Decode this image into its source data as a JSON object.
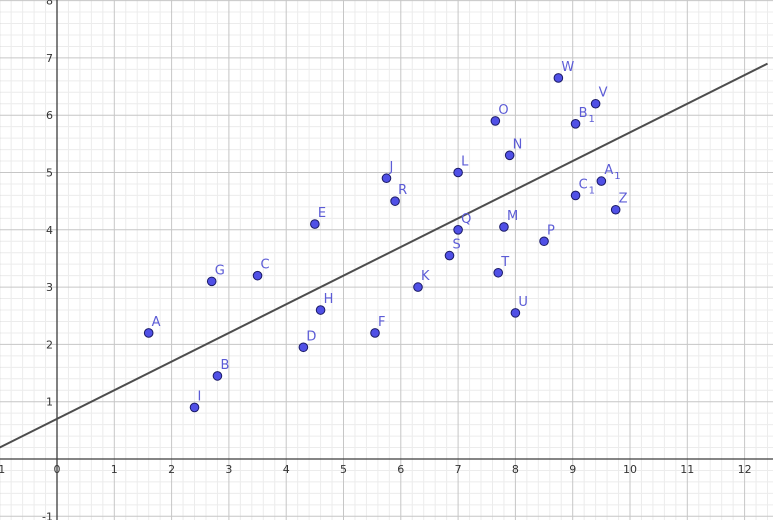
{
  "chart_data": {
    "type": "scatter",
    "xlim": [
      -1,
      12.4
    ],
    "ylim": [
      -1,
      8
    ],
    "grid": true,
    "grid_minor_step": 0.2,
    "x_ticks": [
      "-1",
      "0",
      "1",
      "2",
      "3",
      "4",
      "5",
      "6",
      "7",
      "8",
      "9",
      "10",
      "11",
      "12"
    ],
    "y_ticks": [
      "-1",
      "1",
      "2",
      "3",
      "4",
      "5",
      "6",
      "7",
      "8"
    ],
    "points": [
      {
        "label": "A",
        "sub": "",
        "x": 1.6,
        "y": 2.2
      },
      {
        "label": "B",
        "sub": "",
        "x": 2.8,
        "y": 1.45
      },
      {
        "label": "C",
        "sub": "",
        "x": 3.5,
        "y": 3.2
      },
      {
        "label": "D",
        "sub": "",
        "x": 4.3,
        "y": 1.95
      },
      {
        "label": "E",
        "sub": "",
        "x": 4.5,
        "y": 4.1
      },
      {
        "label": "F",
        "sub": "",
        "x": 5.55,
        "y": 2.2
      },
      {
        "label": "G",
        "sub": "",
        "x": 2.7,
        "y": 3.1
      },
      {
        "label": "H",
        "sub": "",
        "x": 4.6,
        "y": 2.6
      },
      {
        "label": "I",
        "sub": "",
        "x": 2.4,
        "y": 0.9
      },
      {
        "label": "J",
        "sub": "",
        "x": 5.75,
        "y": 4.9
      },
      {
        "label": "K",
        "sub": "",
        "x": 6.3,
        "y": 3.0
      },
      {
        "label": "L",
        "sub": "",
        "x": 7.0,
        "y": 5.0
      },
      {
        "label": "M",
        "sub": "",
        "x": 7.8,
        "y": 4.05
      },
      {
        "label": "N",
        "sub": "",
        "x": 7.9,
        "y": 5.3
      },
      {
        "label": "O",
        "sub": "",
        "x": 7.65,
        "y": 5.9
      },
      {
        "label": "P",
        "sub": "",
        "x": 8.5,
        "y": 3.8
      },
      {
        "label": "Q",
        "sub": "",
        "x": 7.0,
        "y": 4.0
      },
      {
        "label": "R",
        "sub": "",
        "x": 5.9,
        "y": 4.5
      },
      {
        "label": "S",
        "sub": "",
        "x": 6.85,
        "y": 3.55
      },
      {
        "label": "T",
        "sub": "",
        "x": 7.7,
        "y": 3.25
      },
      {
        "label": "U",
        "sub": "",
        "x": 8.0,
        "y": 2.55
      },
      {
        "label": "V",
        "sub": "",
        "x": 9.4,
        "y": 6.2
      },
      {
        "label": "W",
        "sub": "",
        "x": 8.75,
        "y": 6.65
      },
      {
        "label": "Z",
        "sub": "",
        "x": 9.75,
        "y": 4.35
      },
      {
        "label": "A",
        "sub": "1",
        "x": 9.5,
        "y": 4.85
      },
      {
        "label": "B",
        "sub": "1",
        "x": 9.05,
        "y": 5.85
      },
      {
        "label": "C",
        "sub": "1",
        "x": 9.05,
        "y": 4.6
      }
    ],
    "regression_line": {
      "slope": 0.5,
      "intercept": 0.7
    },
    "colors": {
      "point_fill": "#5050e6",
      "point_stroke": "#1a1a66",
      "point_label": "#5c5cd6",
      "line": "#4d4d4d",
      "axis": "#3c3c3c",
      "grid_major": "#c6c6c6",
      "grid_minor": "#ececec",
      "tick_label": "#333333"
    }
  }
}
